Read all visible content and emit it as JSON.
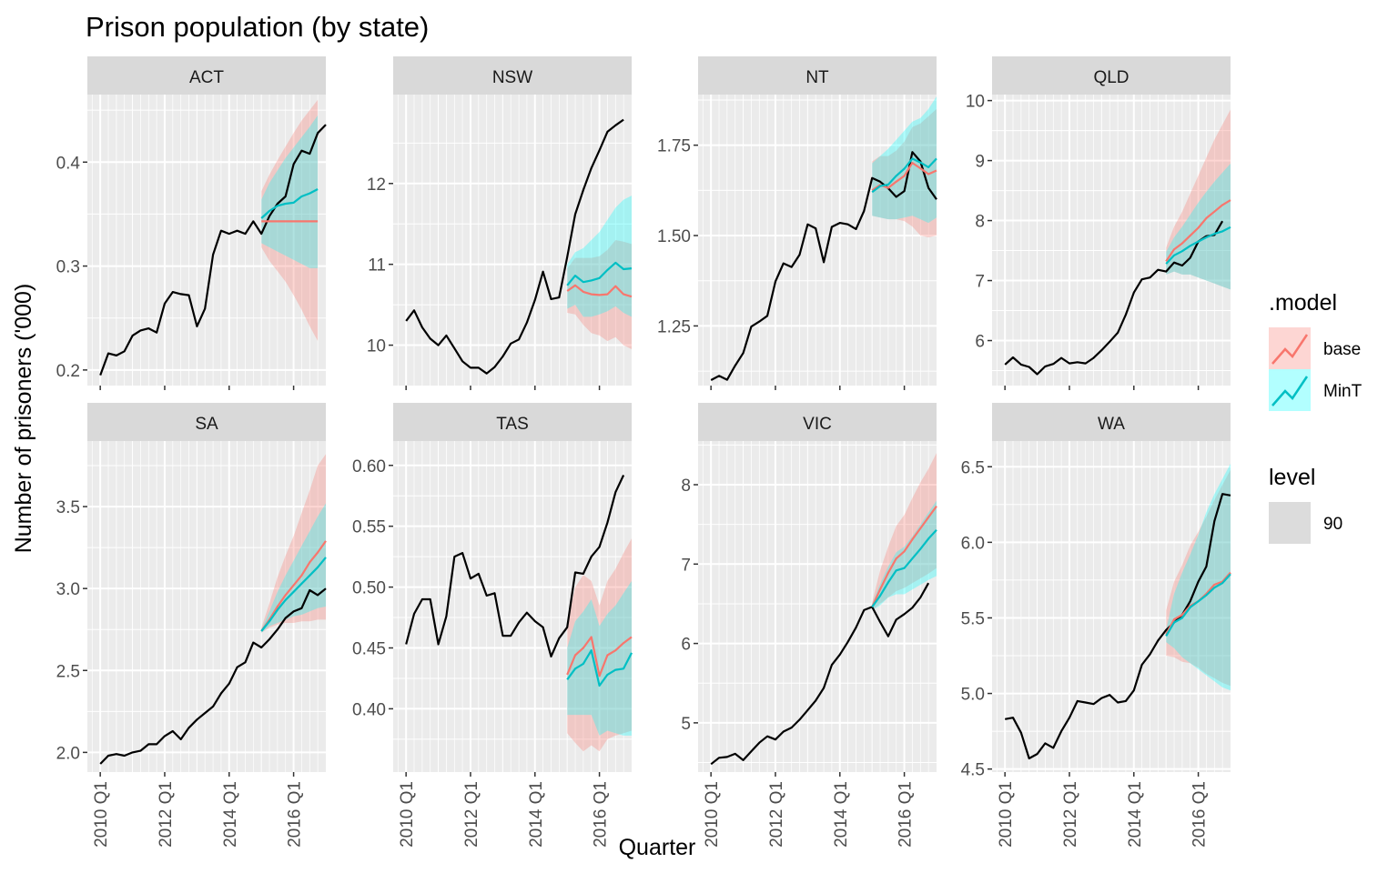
{
  "chart_data": {
    "type": "line",
    "title": "Prison population (by state)",
    "xlabel": "Quarter",
    "ylabel": "Number of prisoners ('000)",
    "x_ticks": [
      "2010 Q1",
      "2012 Q1",
      "2014 Q1",
      "2016 Q1"
    ],
    "x_domain": [
      2009.6,
      2017.0
    ],
    "history_start": 2010.0,
    "forecast_start": 2015.0,
    "step": 0.25,
    "legend": {
      "model_title": ".model",
      "model_entries": [
        {
          "name": "base",
          "color": "#F8766D",
          "fill": "#F8766D"
        },
        {
          "name": "MinT",
          "color": "#00BFC4",
          "fill": "#00FFFF"
        }
      ],
      "level_title": "level",
      "level_entries": [
        {
          "name": "90",
          "color": "#dcdcdc"
        }
      ]
    },
    "colors": {
      "actual": "#000000",
      "base": "#F8766D",
      "mint": "#00BFC4",
      "base_band": "#F8766D",
      "mint_band": "#00FFFF",
      "panel": "#EBEBEB",
      "strip": "#D9D9D9",
      "grid": "#FFFFFF"
    },
    "panels": [
      {
        "state": "ACT",
        "ylim": [
          0.185,
          0.465
        ],
        "yticks": [
          0.2,
          0.3,
          0.4
        ],
        "tick_labels": [
          "0.2",
          "0.3",
          "0.4"
        ],
        "actual": [
          0.195,
          0.216,
          0.214,
          0.218,
          0.233,
          0.238,
          0.24,
          0.236,
          0.264,
          0.275,
          0.273,
          0.272,
          0.242,
          0.259,
          0.311,
          0.334,
          0.331,
          0.334,
          0.331,
          0.343,
          0.331,
          0.348,
          0.36,
          0.367,
          0.398,
          0.411,
          0.408,
          0.428,
          0.436
        ],
        "base": [
          0.343,
          0.343,
          0.343,
          0.343,
          0.343,
          0.343,
          0.343,
          0.343
        ],
        "base_lo": [
          0.318,
          0.305,
          0.295,
          0.285,
          0.272,
          0.258,
          0.242,
          0.228
        ],
        "base_hi": [
          0.372,
          0.388,
          0.402,
          0.415,
          0.428,
          0.44,
          0.45,
          0.46
        ],
        "mint": [
          0.346,
          0.353,
          0.358,
          0.36,
          0.361,
          0.367,
          0.37,
          0.374
        ],
        "mint_lo": [
          0.322,
          0.318,
          0.314,
          0.31,
          0.306,
          0.302,
          0.298,
          0.298
        ],
        "mint_hi": [
          0.364,
          0.38,
          0.392,
          0.404,
          0.414,
          0.424,
          0.434,
          0.445
        ]
      },
      {
        "state": "NSW",
        "ylim": [
          9.5,
          13.1
        ],
        "yticks": [
          10,
          11,
          12
        ],
        "tick_labels": [
          "10",
          "11",
          "12"
        ],
        "actual": [
          10.3,
          10.43,
          10.22,
          10.08,
          10.0,
          10.12,
          9.96,
          9.8,
          9.72,
          9.72,
          9.65,
          9.73,
          9.86,
          10.02,
          10.07,
          10.28,
          10.56,
          10.91,
          10.57,
          10.59,
          11.09,
          11.62,
          11.92,
          12.19,
          12.41,
          12.64,
          12.72,
          12.79
        ],
        "base": [
          10.67,
          10.74,
          10.66,
          10.63,
          10.62,
          10.63,
          10.73,
          10.63,
          10.6
        ],
        "base_lo": [
          10.4,
          10.38,
          10.25,
          10.15,
          10.12,
          10.05,
          10.1,
          10.0,
          9.95
        ],
        "base_hi": [
          10.95,
          11.08,
          11.08,
          11.08,
          11.1,
          11.18,
          11.3,
          11.28,
          11.25
        ],
        "mint": [
          10.74,
          10.86,
          10.78,
          10.8,
          10.83,
          10.93,
          11.02,
          10.94,
          10.95
        ],
        "mint_lo": [
          10.45,
          10.5,
          10.35,
          10.35,
          10.38,
          10.42,
          10.48,
          10.4,
          10.35
        ],
        "mint_hi": [
          11.0,
          11.15,
          11.2,
          11.3,
          11.4,
          11.55,
          11.7,
          11.8,
          11.85
        ]
      },
      {
        "state": "NT",
        "ylim": [
          1.085,
          1.89
        ],
        "yticks": [
          1.25,
          1.5,
          1.75
        ],
        "tick_labels": [
          "1.25",
          "1.50",
          "1.75"
        ],
        "actual": [
          1.1,
          1.112,
          1.101,
          1.14,
          1.175,
          1.248,
          1.262,
          1.278,
          1.373,
          1.423,
          1.413,
          1.447,
          1.531,
          1.52,
          1.426,
          1.524,
          1.535,
          1.531,
          1.518,
          1.568,
          1.659,
          1.649,
          1.631,
          1.607,
          1.623,
          1.731,
          1.705,
          1.632,
          1.6
        ],
        "base": [
          1.625,
          1.64,
          1.632,
          1.649,
          1.665,
          1.701,
          1.686,
          1.67,
          1.68
        ],
        "base_lo": [
          1.555,
          1.55,
          1.545,
          1.545,
          1.54,
          1.525,
          1.5,
          1.495,
          1.5
        ],
        "base_hi": [
          1.705,
          1.72,
          1.72,
          1.735,
          1.76,
          1.8,
          1.81,
          1.83,
          1.85
        ],
        "mint": [
          1.62,
          1.637,
          1.641,
          1.665,
          1.685,
          1.713,
          1.702,
          1.689,
          1.713
        ],
        "mint_lo": [
          1.555,
          1.55,
          1.545,
          1.545,
          1.55,
          1.555,
          1.545,
          1.535,
          1.55
        ],
        "mint_hi": [
          1.7,
          1.72,
          1.74,
          1.765,
          1.79,
          1.815,
          1.825,
          1.85,
          1.885
        ]
      },
      {
        "state": "QLD",
        "ylim": [
          5.25,
          10.1
        ],
        "yticks": [
          6,
          7,
          8,
          9,
          10
        ],
        "tick_labels": [
          "6",
          "7",
          "8",
          "9",
          "10"
        ],
        "actual": [
          5.6,
          5.72,
          5.6,
          5.56,
          5.44,
          5.57,
          5.61,
          5.71,
          5.62,
          5.64,
          5.62,
          5.71,
          5.84,
          5.98,
          6.13,
          6.43,
          6.8,
          7.02,
          7.05,
          7.18,
          7.15,
          7.3,
          7.25,
          7.38,
          7.65,
          7.74,
          7.76,
          7.99
        ],
        "base": [
          7.32,
          7.52,
          7.62,
          7.75,
          7.88,
          8.04,
          8.15,
          8.26,
          8.34
        ],
        "base_lo": [
          7.1,
          7.15,
          7.1,
          7.1,
          7.05,
          7.0,
          6.95,
          6.9,
          6.85
        ],
        "base_hi": [
          7.55,
          7.9,
          8.15,
          8.45,
          8.75,
          9.05,
          9.35,
          9.6,
          9.85
        ],
        "mint": [
          7.28,
          7.42,
          7.49,
          7.58,
          7.65,
          7.72,
          7.78,
          7.82,
          7.89
        ],
        "mint_lo": [
          7.1,
          7.15,
          7.1,
          7.1,
          7.05,
          7.0,
          6.95,
          6.9,
          6.85
        ],
        "mint_hi": [
          7.48,
          7.72,
          7.9,
          8.1,
          8.3,
          8.48,
          8.65,
          8.8,
          8.95
        ]
      },
      {
        "state": "SA",
        "ylim": [
          1.88,
          3.9
        ],
        "yticks": [
          2.0,
          2.5,
          3.0,
          3.5
        ],
        "tick_labels": [
          "2.0",
          "2.5",
          "3.0",
          "3.5"
        ],
        "actual": [
          1.93,
          1.98,
          1.99,
          1.98,
          2.0,
          2.01,
          2.05,
          2.05,
          2.1,
          2.13,
          2.08,
          2.15,
          2.2,
          2.24,
          2.28,
          2.36,
          2.42,
          2.52,
          2.55,
          2.67,
          2.64,
          2.69,
          2.75,
          2.82,
          2.86,
          2.88,
          2.99,
          2.96,
          3.0
        ],
        "base": [
          2.74,
          2.81,
          2.89,
          2.96,
          3.02,
          3.08,
          3.16,
          3.22,
          3.29
        ],
        "base_lo": [
          2.73,
          2.76,
          2.78,
          2.79,
          2.79,
          2.8,
          2.8,
          2.81,
          2.81
        ],
        "base_hi": [
          2.76,
          2.91,
          3.07,
          3.2,
          3.32,
          3.46,
          3.6,
          3.75,
          3.82
        ],
        "mint": [
          2.74,
          2.8,
          2.87,
          2.93,
          2.98,
          3.03,
          3.08,
          3.13,
          3.19
        ],
        "mint_lo": [
          2.73,
          2.77,
          2.79,
          2.81,
          2.83,
          2.84,
          2.86,
          2.88,
          2.89
        ],
        "mint_hi": [
          2.75,
          2.86,
          2.98,
          3.08,
          3.17,
          3.26,
          3.35,
          3.44,
          3.52
        ]
      },
      {
        "state": "TAS",
        "ylim": [
          0.348,
          0.62
        ],
        "yticks": [
          0.4,
          0.45,
          0.5,
          0.55,
          0.6
        ],
        "tick_labels": [
          "0.40",
          "0.45",
          "0.50",
          "0.55",
          "0.60"
        ],
        "actual": [
          0.453,
          0.478,
          0.49,
          0.49,
          0.453,
          0.476,
          0.525,
          0.528,
          0.507,
          0.511,
          0.493,
          0.495,
          0.46,
          0.46,
          0.471,
          0.479,
          0.472,
          0.467,
          0.443,
          0.458,
          0.467,
          0.512,
          0.511,
          0.525,
          0.533,
          0.553,
          0.578,
          0.592
        ],
        "base": [
          0.428,
          0.444,
          0.45,
          0.459,
          0.427,
          0.444,
          0.448,
          0.454,
          0.459
        ],
        "base_lo": [
          0.38,
          0.372,
          0.365,
          0.37,
          0.365,
          0.375,
          0.378,
          0.38,
          0.382
        ],
        "base_hi": [
          0.47,
          0.5,
          0.51,
          0.505,
          0.485,
          0.505,
          0.515,
          0.528,
          0.54
        ],
        "mint": [
          0.424,
          0.433,
          0.437,
          0.448,
          0.419,
          0.428,
          0.432,
          0.433,
          0.446
        ],
        "mint_lo": [
          0.395,
          0.395,
          0.395,
          0.395,
          0.378,
          0.382,
          0.38,
          0.378,
          0.378
        ],
        "mint_hi": [
          0.45,
          0.472,
          0.48,
          0.49,
          0.468,
          0.478,
          0.485,
          0.495,
          0.505
        ]
      },
      {
        "state": "VIC",
        "ylim": [
          4.38,
          8.55
        ],
        "yticks": [
          5,
          6,
          7,
          8
        ],
        "tick_labels": [
          "5",
          "6",
          "7",
          "8"
        ],
        "actual": [
          4.48,
          4.56,
          4.57,
          4.61,
          4.53,
          4.64,
          4.75,
          4.83,
          4.79,
          4.89,
          4.94,
          5.04,
          5.16,
          5.28,
          5.44,
          5.73,
          5.86,
          6.02,
          6.2,
          6.42,
          6.46,
          6.27,
          6.09,
          6.3,
          6.37,
          6.45,
          6.58,
          6.76
        ],
        "base": [
          6.46,
          6.68,
          6.89,
          7.07,
          7.16,
          7.31,
          7.45,
          7.59,
          7.73
        ],
        "base_lo": [
          6.42,
          6.5,
          6.58,
          6.66,
          6.7,
          6.76,
          6.82,
          6.88,
          6.95
        ],
        "base_hi": [
          6.52,
          6.92,
          7.22,
          7.48,
          7.62,
          7.83,
          8.03,
          8.2,
          8.4
        ],
        "mint": [
          6.46,
          6.6,
          6.77,
          6.92,
          6.95,
          7.07,
          7.19,
          7.32,
          7.43
        ],
        "mint_lo": [
          6.42,
          6.48,
          6.58,
          6.62,
          6.62,
          6.68,
          6.74,
          6.8,
          6.85
        ],
        "mint_hi": [
          6.5,
          6.75,
          6.97,
          7.15,
          7.22,
          7.35,
          7.5,
          7.65,
          7.8
        ]
      },
      {
        "state": "WA",
        "ylim": [
          4.48,
          6.67
        ],
        "yticks": [
          4.5,
          5.0,
          5.5,
          6.0,
          6.5
        ],
        "tick_labels": [
          "4.5",
          "5.0",
          "5.5",
          "6.0",
          "6.5"
        ],
        "actual": [
          4.83,
          4.84,
          4.74,
          4.57,
          4.6,
          4.67,
          4.64,
          4.75,
          4.84,
          4.95,
          4.94,
          4.93,
          4.97,
          4.99,
          4.94,
          4.95,
          5.02,
          5.19,
          5.26,
          5.35,
          5.42,
          5.47,
          5.52,
          5.61,
          5.74,
          5.84,
          6.14,
          6.32,
          6.31
        ],
        "base": [
          5.39,
          5.49,
          5.52,
          5.58,
          5.61,
          5.66,
          5.72,
          5.74,
          5.8
        ],
        "base_lo": [
          5.25,
          5.24,
          5.21,
          5.2,
          5.17,
          5.13,
          5.1,
          5.07,
          5.05
        ],
        "base_hi": [
          5.55,
          5.74,
          5.85,
          5.98,
          6.07,
          6.17,
          6.28,
          6.38,
          6.48
        ],
        "mint": [
          5.38,
          5.47,
          5.5,
          5.57,
          5.61,
          5.65,
          5.7,
          5.73,
          5.79
        ],
        "mint_lo": [
          5.34,
          5.3,
          5.24,
          5.2,
          5.16,
          5.12,
          5.08,
          5.04,
          5.02
        ],
        "mint_hi": [
          5.42,
          5.66,
          5.8,
          5.92,
          6.05,
          6.2,
          6.32,
          6.42,
          6.52
        ]
      }
    ]
  }
}
